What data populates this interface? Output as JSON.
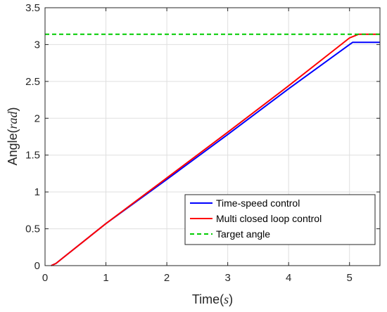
{
  "chart_data": {
    "type": "line",
    "xlabel": {
      "main": "Time",
      "unit": "s"
    },
    "ylabel": {
      "main": "Angle",
      "unit": "rad"
    },
    "xlim": [
      0,
      5.5
    ],
    "ylim": [
      0,
      3.5
    ],
    "xticks": [
      0,
      1,
      2,
      3,
      4,
      5
    ],
    "yticks": [
      0,
      0.5,
      1,
      1.5,
      2,
      2.5,
      3,
      3.5
    ],
    "xtick_labels": [
      "0",
      "1",
      "2",
      "3",
      "4",
      "5"
    ],
    "ytick_labels": [
      "0",
      "0.5",
      "1",
      "1.5",
      "2",
      "2.5",
      "3",
      "3.5"
    ],
    "grid": true,
    "legend_position": "lower-right",
    "series": [
      {
        "name": "Time-speed control",
        "color": "#0000ff",
        "style": "solid",
        "points": [
          [
            0.1,
            0
          ],
          [
            0.18,
            0.03
          ],
          [
            0.3,
            0.11
          ],
          [
            1,
            0.57
          ],
          [
            2,
            1.17
          ],
          [
            3,
            1.78
          ],
          [
            4,
            2.4
          ],
          [
            5.0,
            3.0
          ],
          [
            5.05,
            3.03
          ],
          [
            5.5,
            3.03
          ]
        ]
      },
      {
        "name": "Multi closed loop control",
        "color": "#ff0000",
        "style": "solid",
        "points": [
          [
            0.1,
            0
          ],
          [
            0.18,
            0.03
          ],
          [
            0.3,
            0.11
          ],
          [
            1,
            0.57
          ],
          [
            2,
            1.19
          ],
          [
            3,
            1.81
          ],
          [
            4,
            2.44
          ],
          [
            5.0,
            3.09
          ],
          [
            5.15,
            3.14
          ],
          [
            5.5,
            3.14
          ]
        ]
      },
      {
        "name": "Target angle",
        "color": "#00cc00",
        "style": "dashed",
        "points": [
          [
            0,
            3.14
          ],
          [
            5.5,
            3.14
          ]
        ]
      }
    ]
  }
}
